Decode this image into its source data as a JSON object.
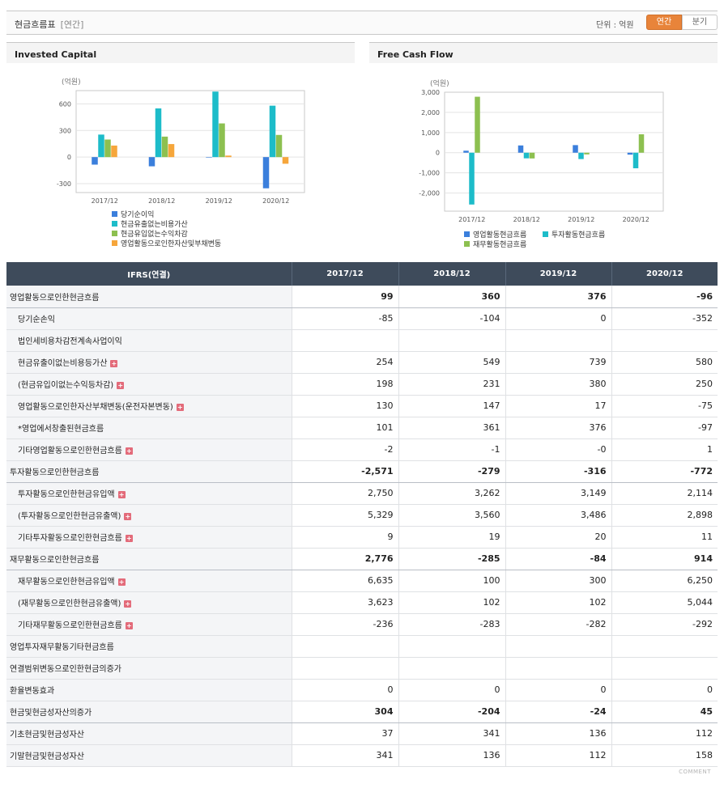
{
  "header": {
    "title": "현금흐름표",
    "subtitle": "[연간]",
    "unit_label": "단위 : 억원",
    "tab_annual": "연간",
    "tab_quarter": "분기"
  },
  "colors": {
    "blue": "#3b7fdc",
    "cyan": "#1dbcc9",
    "green": "#8dc050",
    "orange": "#f6a63b",
    "negative": "#e0001b"
  },
  "chart_data": [
    {
      "type": "bar",
      "title": "Invested Capital",
      "ylabel": "(억원)",
      "categories": [
        "2017/12",
        "2018/12",
        "2019/12",
        "2020/12"
      ],
      "yticks": [
        "600",
        "300",
        "0",
        "-300"
      ],
      "ylim": [
        -400,
        750
      ],
      "series": [
        {
          "name": "당기순이익",
          "color": "#3b7fdc",
          "values": [
            -85,
            -104,
            0,
            -352
          ]
        },
        {
          "name": "현금유출없는비용가산",
          "color": "#1dbcc9",
          "values": [
            254,
            549,
            739,
            580
          ]
        },
        {
          "name": "현금유입없는수익차감",
          "color": "#8dc050",
          "values": [
            198,
            231,
            380,
            250
          ]
        },
        {
          "name": "영업활동으로인한자산및부채변동",
          "color": "#f6a63b",
          "values": [
            130,
            147,
            17,
            -75
          ]
        }
      ],
      "legend": "bottom",
      "grid": true
    },
    {
      "type": "bar",
      "title": "Free Cash Flow",
      "ylabel": "(억원)",
      "categories": [
        "2017/12",
        "2018/12",
        "2019/12",
        "2020/12"
      ],
      "yticks": [
        "3,000",
        "2,000",
        "1,000",
        "0",
        "-1,000",
        "-2,000"
      ],
      "ylim": [
        -2900,
        3000
      ],
      "series": [
        {
          "name": "영업활동현금흐름",
          "color": "#3b7fdc",
          "values": [
            99,
            360,
            376,
            -96
          ]
        },
        {
          "name": "투자활동현금흐름",
          "color": "#1dbcc9",
          "values": [
            -2571,
            -279,
            -316,
            -772
          ]
        },
        {
          "name": "재무활동현금흐름",
          "color": "#8dc050",
          "values": [
            2776,
            -285,
            -84,
            914
          ]
        }
      ],
      "legend": "bottom",
      "grid": true
    }
  ],
  "table": {
    "header_label": "IFRS(연결)",
    "columns": [
      "2017/12",
      "2018/12",
      "2019/12",
      "2020/12"
    ],
    "rows": [
      {
        "label": "영업활동으로인한현금흐름",
        "level": "main",
        "values": [
          "99",
          "360",
          "376",
          "-96"
        ]
      },
      {
        "label": "당기순손익",
        "level": "sub",
        "values": [
          "-85",
          "-104",
          "0",
          "-352"
        ]
      },
      {
        "label": "법인세비용차감전계속사업이익",
        "level": "sub",
        "values": [
          "",
          "",
          "",
          ""
        ]
      },
      {
        "label": "현금유출이없는비용등가산",
        "level": "sub",
        "expand": true,
        "values": [
          "254",
          "549",
          "739",
          "580"
        ]
      },
      {
        "label": "(현금유입이없는수익등차감)",
        "level": "sub",
        "expand": true,
        "values": [
          "198",
          "231",
          "380",
          "250"
        ]
      },
      {
        "label": "영업활동으로인한자산부채변동(운전자본변동)",
        "level": "sub",
        "expand": true,
        "values": [
          "130",
          "147",
          "17",
          "-75"
        ]
      },
      {
        "label": "*영업에서창출된현금흐름",
        "level": "sub",
        "values": [
          "101",
          "361",
          "376",
          "-97"
        ]
      },
      {
        "label": "기타영업활동으로인한현금흐름",
        "level": "sub",
        "expand": true,
        "values": [
          "-2",
          "-1",
          "-0",
          "1"
        ]
      },
      {
        "label": "투자활동으로인한현금흐름",
        "level": "main",
        "values": [
          "-2,571",
          "-279",
          "-316",
          "-772"
        ]
      },
      {
        "label": "투자활동으로인한현금유입액",
        "level": "sub",
        "expand": true,
        "values": [
          "2,750",
          "3,262",
          "3,149",
          "2,114"
        ]
      },
      {
        "label": "(투자활동으로인한현금유출액)",
        "level": "sub",
        "expand": true,
        "values": [
          "5,329",
          "3,560",
          "3,486",
          "2,898"
        ]
      },
      {
        "label": "기타투자활동으로인한현금흐름",
        "level": "sub",
        "expand": true,
        "values": [
          "9",
          "19",
          "20",
          "11"
        ]
      },
      {
        "label": "재무활동으로인한현금흐름",
        "level": "main",
        "values": [
          "2,776",
          "-285",
          "-84",
          "914"
        ]
      },
      {
        "label": "재무활동으로인한현금유입액",
        "level": "sub",
        "expand": true,
        "values": [
          "6,635",
          "100",
          "300",
          "6,250"
        ]
      },
      {
        "label": "(재무활동으로인한현금유출액)",
        "level": "sub",
        "expand": true,
        "values": [
          "3,623",
          "102",
          "102",
          "5,044"
        ]
      },
      {
        "label": "기타재무활동으로인한현금흐름",
        "level": "sub",
        "expand": true,
        "values": [
          "-236",
          "-283",
          "-282",
          "-292"
        ]
      },
      {
        "label": "영업투자재무활동기타현금흐름",
        "level": "plain",
        "values": [
          "",
          "",
          "",
          ""
        ]
      },
      {
        "label": "연결범위변동으로인한현금의증가",
        "level": "plain",
        "values": [
          "",
          "",
          "",
          ""
        ]
      },
      {
        "label": "환율변동효과",
        "level": "plain",
        "values": [
          "0",
          "0",
          "0",
          "0"
        ]
      },
      {
        "label": "현금및현금성자산의증가",
        "level": "main",
        "values": [
          "304",
          "-204",
          "-24",
          "45"
        ]
      },
      {
        "label": "기초현금및현금성자산",
        "level": "plain",
        "values": [
          "37",
          "341",
          "136",
          "112"
        ]
      },
      {
        "label": "기말현금및현금성자산",
        "level": "plain",
        "values": [
          "341",
          "136",
          "112",
          "158"
        ]
      }
    ]
  },
  "footer": {
    "comment": "COMMENT"
  }
}
